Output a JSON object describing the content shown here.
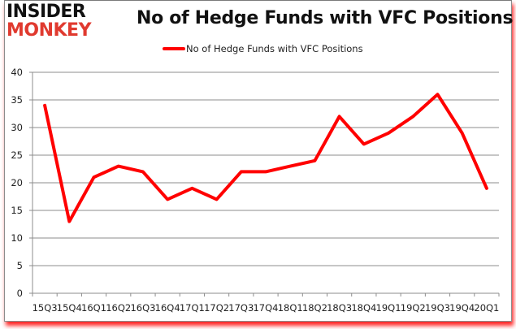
{
  "logo": {
    "line1": "INSIDER",
    "line2": "MONKEY"
  },
  "chart_data": {
    "type": "line",
    "title": "No of Hedge Funds with VFC Positions",
    "xlabel": "",
    "ylabel": "",
    "categories": [
      "15Q3",
      "15Q4",
      "16Q1",
      "16Q2",
      "16Q3",
      "16Q4",
      "17Q1",
      "17Q2",
      "17Q3",
      "17Q4",
      "18Q1",
      "18Q2",
      "18Q3",
      "18Q4",
      "19Q1",
      "19Q2",
      "19Q3",
      "19Q4",
      "20Q1"
    ],
    "series": [
      {
        "name": "No of Hedge Funds with VFC Positions",
        "color": "#ff0000",
        "values": [
          34,
          13,
          21,
          23,
          22,
          17,
          19,
          17,
          22,
          22,
          23,
          24,
          32,
          27,
          29,
          32,
          36,
          29,
          19
        ]
      }
    ],
    "ylim": [
      0,
      40
    ],
    "yticks": [
      0,
      5,
      10,
      15,
      20,
      25,
      30,
      35,
      40
    ],
    "grid": true,
    "legend_position": "top"
  }
}
